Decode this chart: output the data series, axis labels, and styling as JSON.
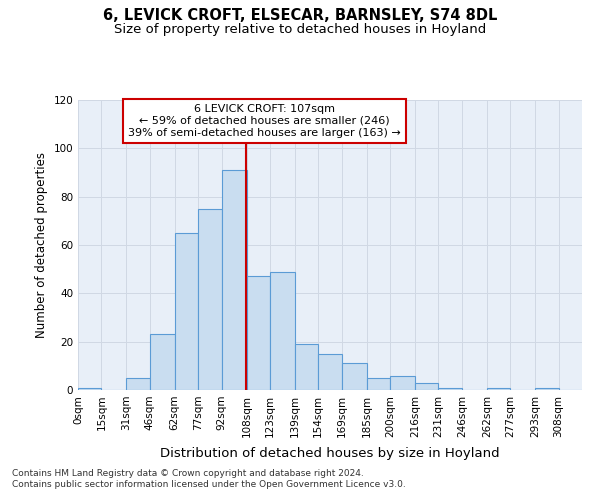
{
  "title1": "6, LEVICK CROFT, ELSECAR, BARNSLEY, S74 8DL",
  "title2": "Size of property relative to detached houses in Hoyland",
  "xlabel": "Distribution of detached houses by size in Hoyland",
  "ylabel": "Number of detached properties",
  "footer1": "Contains HM Land Registry data © Crown copyright and database right 2024.",
  "footer2": "Contains public sector information licensed under the Open Government Licence v3.0.",
  "annotation_line1": "6 LEVICK CROFT: 107sqm",
  "annotation_line2": "← 59% of detached houses are smaller (246)",
  "annotation_line3": "39% of semi-detached houses are larger (163) →",
  "bar_labels": [
    "0sqm",
    "15sqm",
    "31sqm",
    "46sqm",
    "62sqm",
    "77sqm",
    "92sqm",
    "108sqm",
    "123sqm",
    "139sqm",
    "154sqm",
    "169sqm",
    "185sqm",
    "200sqm",
    "216sqm",
    "231sqm",
    "246sqm",
    "262sqm",
    "277sqm",
    "293sqm",
    "308sqm"
  ],
  "bar_heights": [
    1,
    0,
    5,
    23,
    65,
    75,
    91,
    47,
    49,
    19,
    15,
    11,
    5,
    6,
    3,
    1,
    0,
    1,
    0,
    1,
    0
  ],
  "bin_edges": [
    0,
    15,
    31,
    46,
    62,
    77,
    92,
    108,
    123,
    139,
    154,
    169,
    185,
    200,
    216,
    231,
    246,
    262,
    277,
    293,
    308
  ],
  "bar_color": "#c9ddf0",
  "bar_edge_color": "#5b9bd5",
  "vline_x": 107.5,
  "vline_color": "#cc0000",
  "ylim": [
    0,
    120
  ],
  "yticks": [
    0,
    20,
    40,
    60,
    80,
    100,
    120
  ],
  "grid_color": "#d0d8e4",
  "bg_color": "#e8eff8",
  "annotation_box_color": "#ffffff",
  "annotation_box_edge": "#cc0000",
  "title1_fontsize": 10.5,
  "title2_fontsize": 9.5,
  "xlabel_fontsize": 9.5,
  "ylabel_fontsize": 8.5,
  "tick_fontsize": 7.5,
  "annotation_fontsize": 8,
  "footer_fontsize": 6.5
}
